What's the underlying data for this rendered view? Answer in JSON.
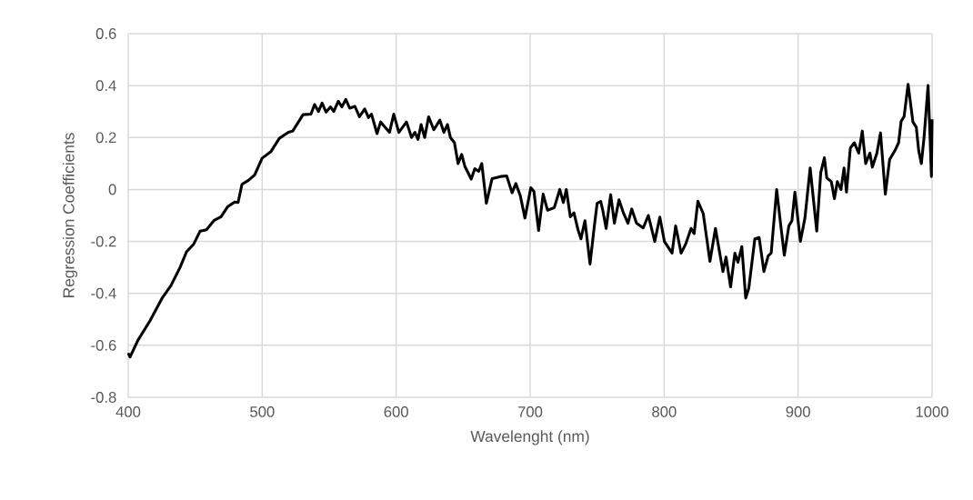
{
  "chart_data": {
    "type": "line",
    "xlabel": "Wavelenght (nm)",
    "ylabel": "Regression Coefficients",
    "xlim": [
      400,
      1000
    ],
    "xticks": [
      400,
      500,
      600,
      700,
      800,
      900,
      1000
    ],
    "ylim": [
      -0.8,
      0.6
    ],
    "yticks": [
      -0.8,
      -0.6,
      -0.4,
      -0.2,
      0,
      0.2,
      0.4,
      0.6
    ],
    "grid": true,
    "legend": false,
    "marker": "none",
    "line_style": "solid",
    "series": [
      {
        "color": "#000000",
        "x": [
          400,
          401.4,
          407.3,
          416.3,
          425.1,
          431.9,
          438.7,
          443.5,
          448.9,
          453.7,
          458.4,
          463.9,
          469.3,
          474.1,
          479.5,
          482,
          484.9,
          489.7,
          494.4,
          499.9,
          506.7,
          512.8,
          519.6,
          522.8,
          530.5,
          536.4,
          539.1,
          542,
          544.7,
          547.7,
          551,
          553.4,
          556.8,
          559.5,
          562.4,
          565.3,
          569.2,
          572.6,
          576.5,
          579.4,
          581.6,
          585.7,
          588.4,
          595,
          598.2,
          602,
          607.7,
          611.5,
          614,
          616.3,
          618.6,
          621.3,
          624.2,
          628.1,
          632.6,
          635.6,
          638.3,
          640.5,
          643.5,
          646.2,
          648.9,
          651.2,
          656,
          658.7,
          661.6,
          663.9,
          667.3,
          671.6,
          677.9,
          682.5,
          686.5,
          689.3,
          692.7,
          696.1,
          700.5,
          702.8,
          706.3,
          709.7,
          713,
          718,
          722.1,
          724.8,
          727,
          730,
          732.7,
          735.7,
          737.9,
          740.9,
          744.7,
          747.7,
          750,
          752.7,
          754.2,
          756.7,
          760.1,
          762.9,
          766.3,
          769.6,
          773,
          775.8,
          779.4,
          784.4,
          788.2,
          793,
          796.8,
          800.2,
          805.9,
          808.6,
          812.7,
          816.1,
          820.1,
          822.4,
          825.2,
          829.2,
          834.2,
          838.3,
          843.9,
          846.2,
          849.6,
          852.8,
          855.1,
          858,
          860.9,
          863.2,
          867.7,
          870.9,
          874.5,
          877.7,
          879.9,
          884,
          886.3,
          889.7,
          893.1,
          895.4,
          897.6,
          901.7,
          905.1,
          909,
          913.9,
          916.9,
          919.6,
          921.4,
          924.8,
          927.1,
          929.3,
          932,
          934.3,
          936.1,
          939,
          942,
          945.2,
          947.9,
          950.4,
          953.6,
          955.4,
          958.8,
          961.5,
          965.1,
          968.3,
          972.3,
          975,
          976.9,
          979.1,
          982.1,
          985.7,
          988.2,
          990,
          992,
          994,
          997,
          998.5,
          999.5,
          1000
        ],
        "values": [
          -0.63,
          -0.645,
          -0.58,
          -0.505,
          -0.42,
          -0.37,
          -0.3,
          -0.24,
          -0.21,
          -0.16,
          -0.155,
          -0.12,
          -0.105,
          -0.067,
          -0.048,
          -0.05,
          0.02,
          0.035,
          0.056,
          0.12,
          0.147,
          0.197,
          0.22,
          0.225,
          0.288,
          0.29,
          0.327,
          0.3,
          0.333,
          0.298,
          0.318,
          0.3,
          0.34,
          0.318,
          0.347,
          0.313,
          0.32,
          0.28,
          0.31,
          0.277,
          0.29,
          0.215,
          0.26,
          0.22,
          0.29,
          0.22,
          0.26,
          0.2,
          0.22,
          0.193,
          0.25,
          0.2,
          0.28,
          0.23,
          0.267,
          0.22,
          0.25,
          0.2,
          0.18,
          0.1,
          0.135,
          0.09,
          0.04,
          0.08,
          0.07,
          0.1,
          -0.053,
          0.042,
          0.05,
          0.052,
          -0.013,
          0.023,
          -0.025,
          -0.11,
          0.007,
          -0.007,
          -0.158,
          -0.018,
          -0.08,
          -0.07,
          0,
          -0.05,
          0,
          -0.105,
          -0.09,
          -0.155,
          -0.19,
          -0.12,
          -0.287,
          -0.15,
          -0.053,
          -0.046,
          -0.08,
          -0.15,
          -0.02,
          -0.13,
          -0.04,
          -0.09,
          -0.13,
          -0.075,
          -0.13,
          -0.148,
          -0.1,
          -0.2,
          -0.106,
          -0.2,
          -0.245,
          -0.14,
          -0.245,
          -0.21,
          -0.15,
          -0.17,
          -0.045,
          -0.093,
          -0.277,
          -0.15,
          -0.316,
          -0.26,
          -0.375,
          -0.245,
          -0.28,
          -0.22,
          -0.418,
          -0.38,
          -0.19,
          -0.185,
          -0.316,
          -0.255,
          -0.245,
          0,
          -0.105,
          -0.253,
          -0.14,
          -0.12,
          -0.01,
          -0.2,
          -0.11,
          0.083,
          -0.16,
          0.065,
          0.122,
          0.045,
          0.03,
          -0.035,
          0.03,
          0,
          0.083,
          -0.01,
          0.16,
          0.18,
          0.14,
          0.225,
          0.1,
          0.14,
          0.086,
          0.14,
          0.218,
          -0.018,
          0.115,
          0.15,
          0.18,
          0.263,
          0.28,
          0.405,
          0.26,
          0.24,
          0.15,
          0.1,
          0.2,
          0.4,
          0.2,
          0.05,
          0.27
        ]
      }
    ]
  }
}
